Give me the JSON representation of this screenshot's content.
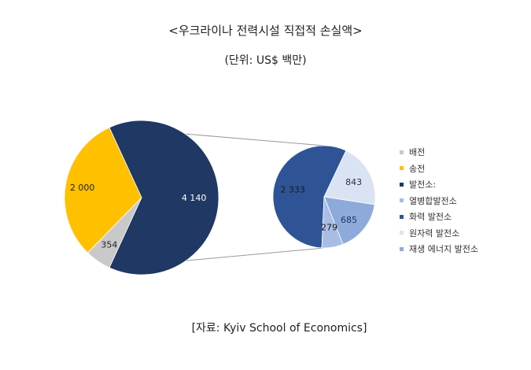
{
  "title": "<우크라이나 전력시설 직접적 손실액>",
  "subtitle": "(단위: US$ 백만)",
  "source": "[자료: Kyiv School of Economics]",
  "legend": [
    {
      "label": "배전",
      "color": "#c9c9c9"
    },
    {
      "label": "송전",
      "color": "#ffc000"
    },
    {
      "label": "발전소:",
      "color": "#1f3864"
    },
    {
      "label": "열병합발전소",
      "color": "#a9bde4"
    },
    {
      "label": "화력 발전소",
      "color": "#2f5496"
    },
    {
      "label": "원자력 발전소",
      "color": "#dae3f3"
    },
    {
      "label": "재생 에너지 발전소",
      "color": "#8eaadb"
    }
  ],
  "chart_data": {
    "type": "pie",
    "subtype": "pie-of-pie",
    "title": "<우크라이나 전력시설 직접적 손실액>",
    "subtitle": "(단위: US$ 백만)",
    "main_pie": {
      "slices": [
        {
          "label": "배전",
          "value": 354,
          "display": "354",
          "color": "#c9c9c9",
          "label_color": "#222222"
        },
        {
          "label": "송전",
          "value": 2000,
          "display": "2 000",
          "color": "#ffc000",
          "label_color": "#222222"
        },
        {
          "label": "발전소:",
          "value": 4140,
          "display": "4 140",
          "color": "#1f3864",
          "label_color": "#ffffff"
        }
      ]
    },
    "secondary_pie": {
      "parent": "발전소:",
      "slices": [
        {
          "label": "화력 발전소",
          "value": 2333,
          "display": "2 333",
          "color": "#2f5496",
          "label_color": "#1a1a1a"
        },
        {
          "label": "원자력 발전소",
          "value": 843,
          "display": "843",
          "color": "#dae3f3",
          "label_color": "#333333"
        },
        {
          "label": "재생 에너지 발전소",
          "value": 685,
          "display": "685",
          "color": "#8eaadb",
          "label_color": "#1f3864"
        },
        {
          "label": "열병합발전소",
          "value": 279,
          "display": "279",
          "color": "#a9bde4",
          "label_color": "#1a1a1a"
        }
      ]
    },
    "legend_position": "right",
    "source": "[자료: Kyiv School of Economics]"
  }
}
